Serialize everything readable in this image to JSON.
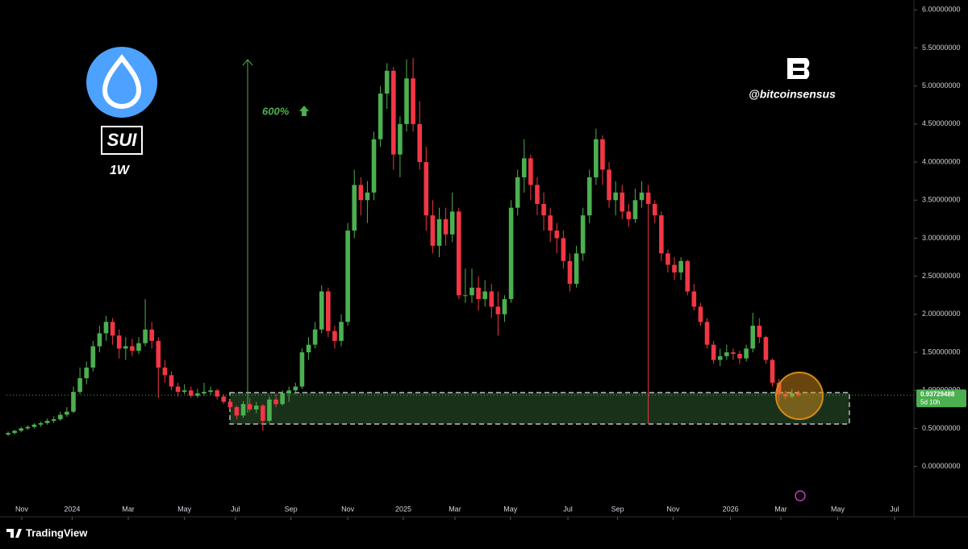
{
  "chart_data": {
    "type": "candlestick",
    "ticker": "SUI",
    "timeframe": "1W",
    "gain_label": "600%",
    "handle": "@bitcoinsensus",
    "brand": "TradingView",
    "last_price": 0.93729488,
    "countdown": "5d 10h",
    "up_color": "#4caf50",
    "down_color": "#f23645",
    "xlim": [
      -0.25,
      138.3
    ],
    "ylim": [
      -0.65,
      6.13
    ],
    "xticks": [
      {
        "value": 2.1,
        "label": "Nov"
      },
      {
        "value": 9.8,
        "label": "2024"
      },
      {
        "value": 18.4,
        "label": "Mar"
      },
      {
        "value": 27.0,
        "label": "May"
      },
      {
        "value": 34.8,
        "label": "Jul"
      },
      {
        "value": 43.3,
        "label": "Sep"
      },
      {
        "value": 52.0,
        "label": "Nov"
      },
      {
        "value": 60.5,
        "label": "2025"
      },
      {
        "value": 68.4,
        "label": "Mar"
      },
      {
        "value": 76.9,
        "label": "May"
      },
      {
        "value": 85.7,
        "label": "Jul"
      },
      {
        "value": 93.3,
        "label": "Sep"
      },
      {
        "value": 101.8,
        "label": "Nov"
      },
      {
        "value": 110.6,
        "label": "2026"
      },
      {
        "value": 118.3,
        "label": "Mar"
      },
      {
        "value": 127.0,
        "label": "May"
      },
      {
        "value": 135.7,
        "label": "Jul"
      }
    ],
    "yticks": [
      {
        "value": 0,
        "label": "0.00000000"
      },
      {
        "value": 0.5,
        "label": "0.50000000"
      },
      {
        "value": 1.0,
        "label": "1.00000000"
      },
      {
        "value": 1.5,
        "label": "1.50000000"
      },
      {
        "value": 2.0,
        "label": "2.00000000"
      },
      {
        "value": 2.5,
        "label": "2.50000000"
      },
      {
        "value": 3.0,
        "label": "3.00000000"
      },
      {
        "value": 3.5,
        "label": "3.50000000"
      },
      {
        "value": 4.0,
        "label": "4.00000000"
      },
      {
        "value": 4.5,
        "label": "4.50000000"
      },
      {
        "value": 5.0,
        "label": "5.00000000"
      },
      {
        "value": 5.5,
        "label": "5.50000000"
      },
      {
        "value": 6.0,
        "label": "6.00000000"
      }
    ],
    "candles": [
      [
        0.42,
        0.46,
        0.4,
        0.44
      ],
      [
        0.44,
        0.48,
        0.42,
        0.47
      ],
      [
        0.47,
        0.52,
        0.45,
        0.5
      ],
      [
        0.5,
        0.54,
        0.48,
        0.52
      ],
      [
        0.52,
        0.57,
        0.5,
        0.55
      ],
      [
        0.55,
        0.59,
        0.52,
        0.57
      ],
      [
        0.57,
        0.63,
        0.55,
        0.6
      ],
      [
        0.6,
        0.66,
        0.57,
        0.62
      ],
      [
        0.62,
        0.72,
        0.6,
        0.68
      ],
      [
        0.68,
        0.78,
        0.65,
        0.72
      ],
      [
        0.72,
        1.05,
        0.7,
        0.98
      ],
      [
        0.98,
        1.3,
        0.95,
        1.16
      ],
      [
        1.16,
        1.38,
        1.08,
        1.3
      ],
      [
        1.3,
        1.65,
        1.25,
        1.58
      ],
      [
        1.58,
        1.85,
        1.5,
        1.75
      ],
      [
        1.75,
        1.98,
        1.65,
        1.9
      ],
      [
        1.9,
        1.95,
        1.6,
        1.72
      ],
      [
        1.72,
        1.8,
        1.42,
        1.55
      ],
      [
        1.55,
        1.7,
        1.4,
        1.58
      ],
      [
        1.58,
        1.68,
        1.45,
        1.52
      ],
      [
        1.52,
        1.7,
        1.48,
        1.62
      ],
      [
        1.62,
        2.2,
        1.58,
        1.8
      ],
      [
        1.8,
        1.9,
        1.55,
        1.65
      ],
      [
        1.65,
        1.7,
        0.9,
        1.3
      ],
      [
        1.3,
        1.4,
        1.1,
        1.2
      ],
      [
        1.2,
        1.25,
        1.0,
        1.05
      ],
      [
        1.05,
        1.1,
        0.92,
        0.98
      ],
      [
        0.98,
        1.08,
        0.95,
        1.0
      ],
      [
        1.0,
        1.05,
        0.9,
        0.93
      ],
      [
        0.93,
        1.02,
        0.9,
        0.96
      ],
      [
        0.96,
        1.1,
        0.93,
        0.98
      ],
      [
        0.98,
        1.05,
        0.94,
        1.0
      ],
      [
        1.0,
        1.02,
        0.88,
        0.92
      ],
      [
        0.92,
        0.95,
        0.82,
        0.85
      ],
      [
        0.85,
        0.88,
        0.75,
        0.78
      ],
      [
        0.78,
        0.8,
        0.62,
        0.67
      ],
      [
        0.67,
        0.86,
        0.64,
        0.82
      ],
      [
        0.82,
        0.9,
        0.72,
        0.75
      ],
      [
        0.75,
        0.85,
        0.7,
        0.8
      ],
      [
        0.8,
        0.82,
        0.47,
        0.6
      ],
      [
        0.6,
        0.92,
        0.58,
        0.88
      ],
      [
        0.88,
        0.95,
        0.78,
        0.82
      ],
      [
        0.82,
        1.0,
        0.8,
        0.96
      ],
      [
        0.96,
        1.05,
        0.85,
        1.0
      ],
      [
        1.0,
        1.1,
        0.95,
        1.05
      ],
      [
        1.05,
        1.55,
        1.02,
        1.5
      ],
      [
        1.5,
        1.7,
        1.4,
        1.6
      ],
      [
        1.6,
        1.9,
        1.55,
        1.8
      ],
      [
        1.8,
        2.38,
        1.75,
        2.3
      ],
      [
        2.3,
        2.35,
        1.7,
        1.78
      ],
      [
        1.78,
        1.85,
        1.55,
        1.65
      ],
      [
        1.65,
        2.0,
        1.58,
        1.9
      ],
      [
        1.9,
        3.2,
        1.85,
        3.1
      ],
      [
        3.1,
        3.9,
        3.0,
        3.7
      ],
      [
        3.7,
        3.8,
        3.3,
        3.5
      ],
      [
        3.5,
        3.75,
        3.2,
        3.6
      ],
      [
        3.6,
        4.4,
        3.5,
        4.3
      ],
      [
        4.3,
        5.0,
        4.2,
        4.9
      ],
      [
        4.9,
        5.3,
        4.7,
        5.2
      ],
      [
        5.2,
        5.25,
        3.9,
        4.1
      ],
      [
        4.1,
        4.6,
        3.8,
        4.5
      ],
      [
        4.5,
        5.35,
        4.4,
        5.1
      ],
      [
        5.1,
        5.37,
        4.4,
        4.5
      ],
      [
        4.5,
        4.8,
        3.9,
        4.0
      ],
      [
        4.0,
        4.2,
        3.1,
        3.3
      ],
      [
        3.3,
        3.5,
        2.8,
        2.9
      ],
      [
        2.9,
        3.4,
        2.75,
        3.25
      ],
      [
        3.25,
        3.4,
        2.9,
        3.05
      ],
      [
        3.05,
        3.6,
        2.95,
        3.35
      ],
      [
        3.35,
        3.4,
        2.2,
        2.25
      ],
      [
        2.25,
        2.6,
        2.15,
        2.25
      ],
      [
        2.25,
        2.6,
        2.15,
        2.35
      ],
      [
        2.35,
        2.5,
        2.05,
        2.2
      ],
      [
        2.2,
        2.45,
        2.1,
        2.3
      ],
      [
        2.3,
        2.4,
        1.95,
        2.1
      ],
      [
        2.1,
        2.3,
        1.72,
        2.0
      ],
      [
        2.0,
        2.25,
        1.9,
        2.2
      ],
      [
        2.2,
        3.5,
        2.15,
        3.4
      ],
      [
        3.4,
        3.9,
        3.3,
        3.8
      ],
      [
        3.8,
        4.3,
        3.6,
        4.05
      ],
      [
        4.05,
        4.1,
        3.5,
        3.7
      ],
      [
        3.7,
        3.8,
        3.3,
        3.45
      ],
      [
        3.45,
        3.6,
        3.1,
        3.3
      ],
      [
        3.3,
        3.4,
        2.95,
        3.1
      ],
      [
        3.1,
        3.2,
        2.8,
        3.0
      ],
      [
        3.0,
        3.1,
        2.6,
        2.7
      ],
      [
        2.7,
        2.8,
        2.3,
        2.4
      ],
      [
        2.4,
        2.9,
        2.35,
        2.8
      ],
      [
        2.8,
        3.4,
        2.7,
        3.3
      ],
      [
        3.3,
        3.9,
        3.2,
        3.8
      ],
      [
        3.8,
        4.44,
        3.7,
        4.3
      ],
      [
        4.3,
        4.35,
        3.7,
        3.9
      ],
      [
        3.9,
        4.0,
        3.4,
        3.5
      ],
      [
        3.5,
        3.75,
        3.3,
        3.6
      ],
      [
        3.6,
        3.7,
        3.25,
        3.35
      ],
      [
        3.35,
        3.45,
        3.15,
        3.25
      ],
      [
        3.25,
        3.65,
        3.2,
        3.5
      ],
      [
        3.5,
        3.75,
        3.4,
        3.6
      ],
      [
        3.6,
        3.7,
        0.56,
        3.45
      ],
      [
        3.45,
        3.5,
        3.2,
        3.3
      ],
      [
        3.3,
        3.35,
        2.7,
        2.8
      ],
      [
        2.8,
        2.85,
        2.55,
        2.65
      ],
      [
        2.65,
        2.75,
        2.45,
        2.55
      ],
      [
        2.55,
        2.75,
        2.45,
        2.7
      ],
      [
        2.7,
        2.72,
        2.25,
        2.3
      ],
      [
        2.3,
        2.4,
        2.05,
        2.1
      ],
      [
        2.1,
        2.15,
        1.85,
        1.9
      ],
      [
        1.9,
        1.95,
        1.55,
        1.6
      ],
      [
        1.6,
        1.65,
        1.35,
        1.4
      ],
      [
        1.4,
        1.55,
        1.32,
        1.45
      ],
      [
        1.45,
        1.6,
        1.4,
        1.5
      ],
      [
        1.5,
        1.55,
        1.4,
        1.48
      ],
      [
        1.48,
        1.52,
        1.35,
        1.42
      ],
      [
        1.42,
        1.6,
        1.38,
        1.55
      ],
      [
        1.55,
        2.02,
        1.5,
        1.85
      ],
      [
        1.85,
        1.95,
        1.62,
        1.7
      ],
      [
        1.7,
        1.72,
        1.35,
        1.4
      ],
      [
        1.4,
        1.42,
        1.05,
        1.1
      ],
      [
        1.1,
        1.15,
        0.85,
        0.95
      ],
      [
        0.95,
        1.0,
        0.88,
        0.92
      ],
      [
        0.92,
        1.02,
        0.9,
        0.96
      ],
      [
        0.96,
        1.0,
        0.92,
        0.94
      ]
    ]
  }
}
